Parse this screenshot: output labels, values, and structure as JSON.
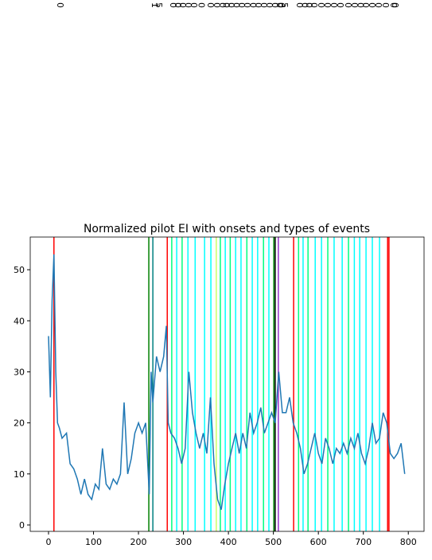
{
  "chart_data": {
    "type": "line",
    "title": "Normalized pilot EI with onsets and types of events",
    "x": [
      0,
      4,
      8,
      12,
      16,
      20,
      24,
      30,
      40,
      48,
      56,
      64,
      72,
      80,
      88,
      96,
      104,
      112,
      120,
      128,
      136,
      144,
      152,
      160,
      168,
      176,
      184,
      192,
      200,
      208,
      216,
      224,
      228,
      232,
      240,
      248,
      256,
      262,
      266,
      272,
      280,
      288,
      296,
      304,
      312,
      320,
      328,
      336,
      344,
      352,
      360,
      368,
      376,
      384,
      392,
      400,
      408,
      416,
      424,
      432,
      440,
      448,
      456,
      464,
      472,
      480,
      488,
      496,
      504,
      512,
      520,
      528,
      536,
      544,
      552,
      560,
      568,
      576,
      584,
      592,
      600,
      608,
      616,
      624,
      632,
      640,
      648,
      656,
      664,
      672,
      680,
      688,
      696,
      704,
      712,
      720,
      728,
      736,
      744,
      752,
      760,
      768,
      776,
      784,
      792
    ],
    "series": [
      {
        "name": "EI",
        "color": "#1f77b4",
        "values": [
          37,
          25,
          44,
          53,
          30,
          20,
          19,
          17,
          18,
          12,
          11,
          9,
          6,
          9,
          6,
          5,
          8,
          7,
          15,
          8,
          7,
          9,
          8,
          10,
          24,
          10,
          13,
          18,
          20,
          18,
          20,
          6,
          30,
          24,
          33,
          30,
          33,
          39,
          20,
          18,
          17,
          15,
          12,
          15,
          30,
          22,
          18,
          15,
          18,
          14,
          25,
          12,
          5,
          3,
          8,
          12,
          15,
          18,
          14,
          18,
          15,
          22,
          18,
          20,
          23,
          18,
          20,
          22,
          20,
          30,
          22,
          22,
          25,
          20,
          18,
          15,
          10,
          12,
          15,
          18,
          14,
          12,
          17,
          15,
          12,
          15,
          14,
          16,
          14,
          17,
          15,
          18,
          14,
          12,
          15,
          20,
          16,
          17,
          22,
          20,
          14,
          13,
          14,
          16,
          10
        ]
      }
    ],
    "events": [
      {
        "onset": 12,
        "label": "0",
        "color": "#ff0000"
      },
      {
        "onset": 223,
        "label": "1",
        "color": "#008000"
      },
      {
        "onset": 232,
        "label": "5",
        "color": "#008080"
      },
      {
        "onset": 264,
        "label": "0",
        "color": "#ff0000"
      },
      {
        "onset": 274,
        "label": "0",
        "color": "#00ff7f"
      },
      {
        "onset": 285,
        "label": "0",
        "color": "#00ffff"
      },
      {
        "onset": 297,
        "label": "0",
        "color": "#00ff7f"
      },
      {
        "onset": 310,
        "label": "0",
        "color": "#00ffff"
      },
      {
        "onset": 326,
        "label": "0",
        "color": "#00ffff"
      },
      {
        "onset": 347,
        "label": "0",
        "color": "#00ffff"
      },
      {
        "onset": 361,
        "label": "0",
        "color": "#00ffff"
      },
      {
        "onset": 373,
        "label": "0",
        "color": "#ccff66"
      },
      {
        "onset": 382,
        "label": "0",
        "color": "#00ff7f"
      },
      {
        "onset": 393,
        "label": "0",
        "color": "#00ffff"
      },
      {
        "onset": 404,
        "label": "0",
        "color": "#00ff7f"
      },
      {
        "onset": 416,
        "label": "0",
        "color": "#00ffff"
      },
      {
        "onset": 428,
        "label": "0",
        "color": "#00ffff"
      },
      {
        "onset": 441,
        "label": "0",
        "color": "#00ff7f"
      },
      {
        "onset": 453,
        "label": "0",
        "color": "#00ffff"
      },
      {
        "onset": 465,
        "label": "0",
        "color": "#00ffff"
      },
      {
        "onset": 478,
        "label": "0",
        "color": "#00ff7f"
      },
      {
        "onset": 490,
        "label": "0",
        "color": "#00ffff"
      },
      {
        "onset": 501,
        "label": "0",
        "color": "#008000"
      },
      {
        "onset": 504,
        "label": "0",
        "color": "#000000"
      },
      {
        "onset": 511,
        "label": "5",
        "color": "#9932cc"
      },
      {
        "onset": 545,
        "label": "0",
        "color": "#ff0000"
      },
      {
        "onset": 556,
        "label": "0",
        "color": "#00ff7f"
      },
      {
        "onset": 566,
        "label": "0",
        "color": "#00ffff"
      },
      {
        "onset": 577,
        "label": "0",
        "color": "#00ff7f"
      },
      {
        "onset": 593,
        "label": "0",
        "color": "#00ffff"
      },
      {
        "onset": 607,
        "label": "0",
        "color": "#00ffff"
      },
      {
        "onset": 621,
        "label": "0",
        "color": "#00ff7f"
      },
      {
        "onset": 635,
        "label": "0",
        "color": "#00ffff"
      },
      {
        "onset": 653,
        "label": "0",
        "color": "#00ffff"
      },
      {
        "onset": 667,
        "label": "0",
        "color": "#00ff7f"
      },
      {
        "onset": 680,
        "label": "0",
        "color": "#00ffff"
      },
      {
        "onset": 692,
        "label": "0",
        "color": "#00ffff"
      },
      {
        "onset": 706,
        "label": "0",
        "color": "#00ffff"
      },
      {
        "onset": 720,
        "label": "0",
        "color": "#00ffff"
      },
      {
        "onset": 736,
        "label": "0",
        "color": "#00ffff"
      },
      {
        "onset": 754,
        "label": "0",
        "color": "#ff0000"
      },
      {
        "onset": 757,
        "label": "0",
        "color": "#ff0000"
      }
    ],
    "xlim": [
      -40.7,
      835
    ],
    "ylim": [
      -1.25,
      56.4
    ],
    "xticks": [
      0,
      100,
      200,
      300,
      400,
      500,
      600,
      700,
      800
    ],
    "yticks": [
      0,
      10,
      20,
      30,
      40,
      50
    ]
  }
}
